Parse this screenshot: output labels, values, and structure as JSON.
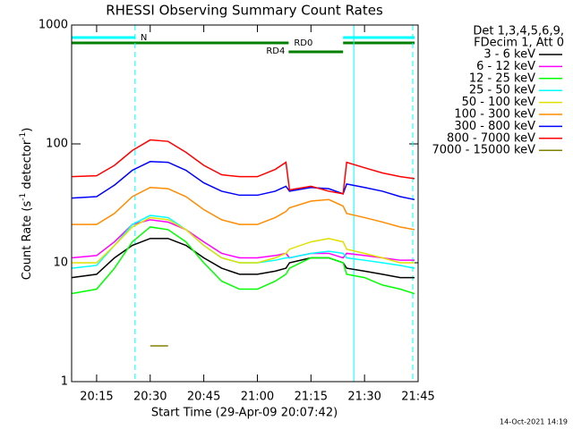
{
  "chart_data": {
    "type": "line",
    "title": "RHESSI Observing Summary Count Rates",
    "x_label": "Start Time (29-Apr-09 20:07:42)",
    "y_label": [
      "Count Rate (s",
      "-1",
      " detector",
      "-1",
      ")"
    ],
    "info": [
      "Det 1,3,4,5,6,9,",
      "FDecim 1, Att 0"
    ],
    "footer": "14-Oct-2021 14:19",
    "log_y": true,
    "xlim": [
      "20:08",
      "21:45"
    ],
    "xticks": [
      "20:15",
      "20:30",
      "20:45",
      "21:00",
      "21:15",
      "21:30",
      "21:45"
    ],
    "ylim": [
      1,
      1000
    ],
    "yticks": [
      1,
      10,
      100,
      1000
    ],
    "x": [
      "20:08",
      "20:15",
      "20:20",
      "20:25",
      "20:30",
      "20:35",
      "20:40",
      "20:45",
      "20:50",
      "20:55",
      "21:00",
      "21:05",
      "21:08",
      "21:09",
      "21:15",
      "21:20",
      "21:24",
      "21:25",
      "21:30",
      "21:35",
      "21:40",
      "21:44"
    ],
    "series": [
      {
        "name": "3 - 6 keV",
        "color": "#000000",
        "values": [
          7.5,
          8,
          11,
          14,
          16,
          16,
          14,
          11,
          9,
          8,
          8,
          8.5,
          9,
          10,
          11,
          11,
          10,
          9,
          8.5,
          8,
          7.5,
          7.5
        ]
      },
      {
        "name": "6 - 12 keV",
        "color": "#ff00ff",
        "values": [
          11,
          11.5,
          15,
          21,
          23,
          22,
          19,
          15,
          12,
          11,
          11,
          11.5,
          12,
          11,
          12,
          12,
          11,
          12,
          11.5,
          11,
          10.5,
          10.5
        ]
      },
      {
        "name": "12 - 25 keV",
        "color": "#00ff00",
        "values": [
          5.5,
          6,
          9,
          15,
          20,
          19,
          15,
          10,
          7,
          6,
          6,
          7,
          8,
          9,
          11,
          11,
          10,
          8,
          7.5,
          6.5,
          6,
          5.5
        ]
      },
      {
        "name": "25 - 50 keV",
        "color": "#00ffff",
        "values": [
          9,
          9.5,
          14,
          21,
          25,
          24,
          19,
          14,
          11,
          10,
          10,
          10.5,
          11,
          11,
          12,
          12.5,
          12,
          11,
          10.5,
          10,
          9.5,
          9
        ]
      },
      {
        "name": "50 - 100 keV",
        "color": "#e0e000",
        "values": [
          10,
          10,
          14,
          20,
          24,
          23,
          19,
          14,
          11,
          10,
          10,
          11,
          12,
          13,
          15,
          16,
          15,
          13,
          12,
          11,
          10,
          10
        ]
      },
      {
        "name": "100 - 300 keV",
        "color": "#ff8c00",
        "values": [
          21,
          21,
          26,
          36,
          43,
          42,
          36,
          28,
          23,
          21,
          21,
          24,
          27,
          29,
          33,
          34,
          30,
          26,
          24,
          22,
          20,
          19
        ]
      },
      {
        "name": "300 - 800 keV",
        "color": "#0000ff",
        "values": [
          35,
          36,
          45,
          60,
          71,
          70,
          60,
          47,
          40,
          37,
          37,
          40,
          44,
          40,
          43,
          42,
          38,
          46,
          43,
          40,
          36,
          34
        ]
      },
      {
        "name": "800 - 7000 keV",
        "color": "#ff0000",
        "values": [
          53,
          54,
          66,
          88,
          108,
          105,
          85,
          66,
          55,
          53,
          53,
          61,
          70,
          41,
          44,
          40,
          38,
          70,
          63,
          57,
          53,
          51
        ]
      },
      {
        "name": "7000 - 15000 keV",
        "color": "#808000",
        "values": [
          null,
          null,
          null,
          null,
          2,
          2,
          null,
          null,
          null,
          null,
          null,
          null,
          null,
          null,
          null,
          null,
          null,
          null,
          null,
          null,
          null,
          null
        ]
      }
    ],
    "vlines": [
      {
        "x": "20:08",
        "dashed": false
      },
      {
        "x": "20:25:45",
        "dashed": true
      },
      {
        "x": "21:27",
        "dashed": false
      },
      {
        "x": "21:43:30",
        "dashed": true
      }
    ],
    "flags": [
      {
        "label": "N",
        "color": "#00ffff",
        "segments": [
          [
            "20:08",
            "20:25:45"
          ],
          [
            "21:24",
            "21:44"
          ]
        ]
      },
      {
        "label": "RD0",
        "color": "#008000",
        "segments": [
          [
            "20:08",
            "21:08:45"
          ],
          [
            "21:24",
            "21:44"
          ]
        ]
      },
      {
        "label": "RD4",
        "color": "#008000",
        "segments": [
          [
            "21:08:45",
            "21:24"
          ]
        ]
      }
    ]
  }
}
